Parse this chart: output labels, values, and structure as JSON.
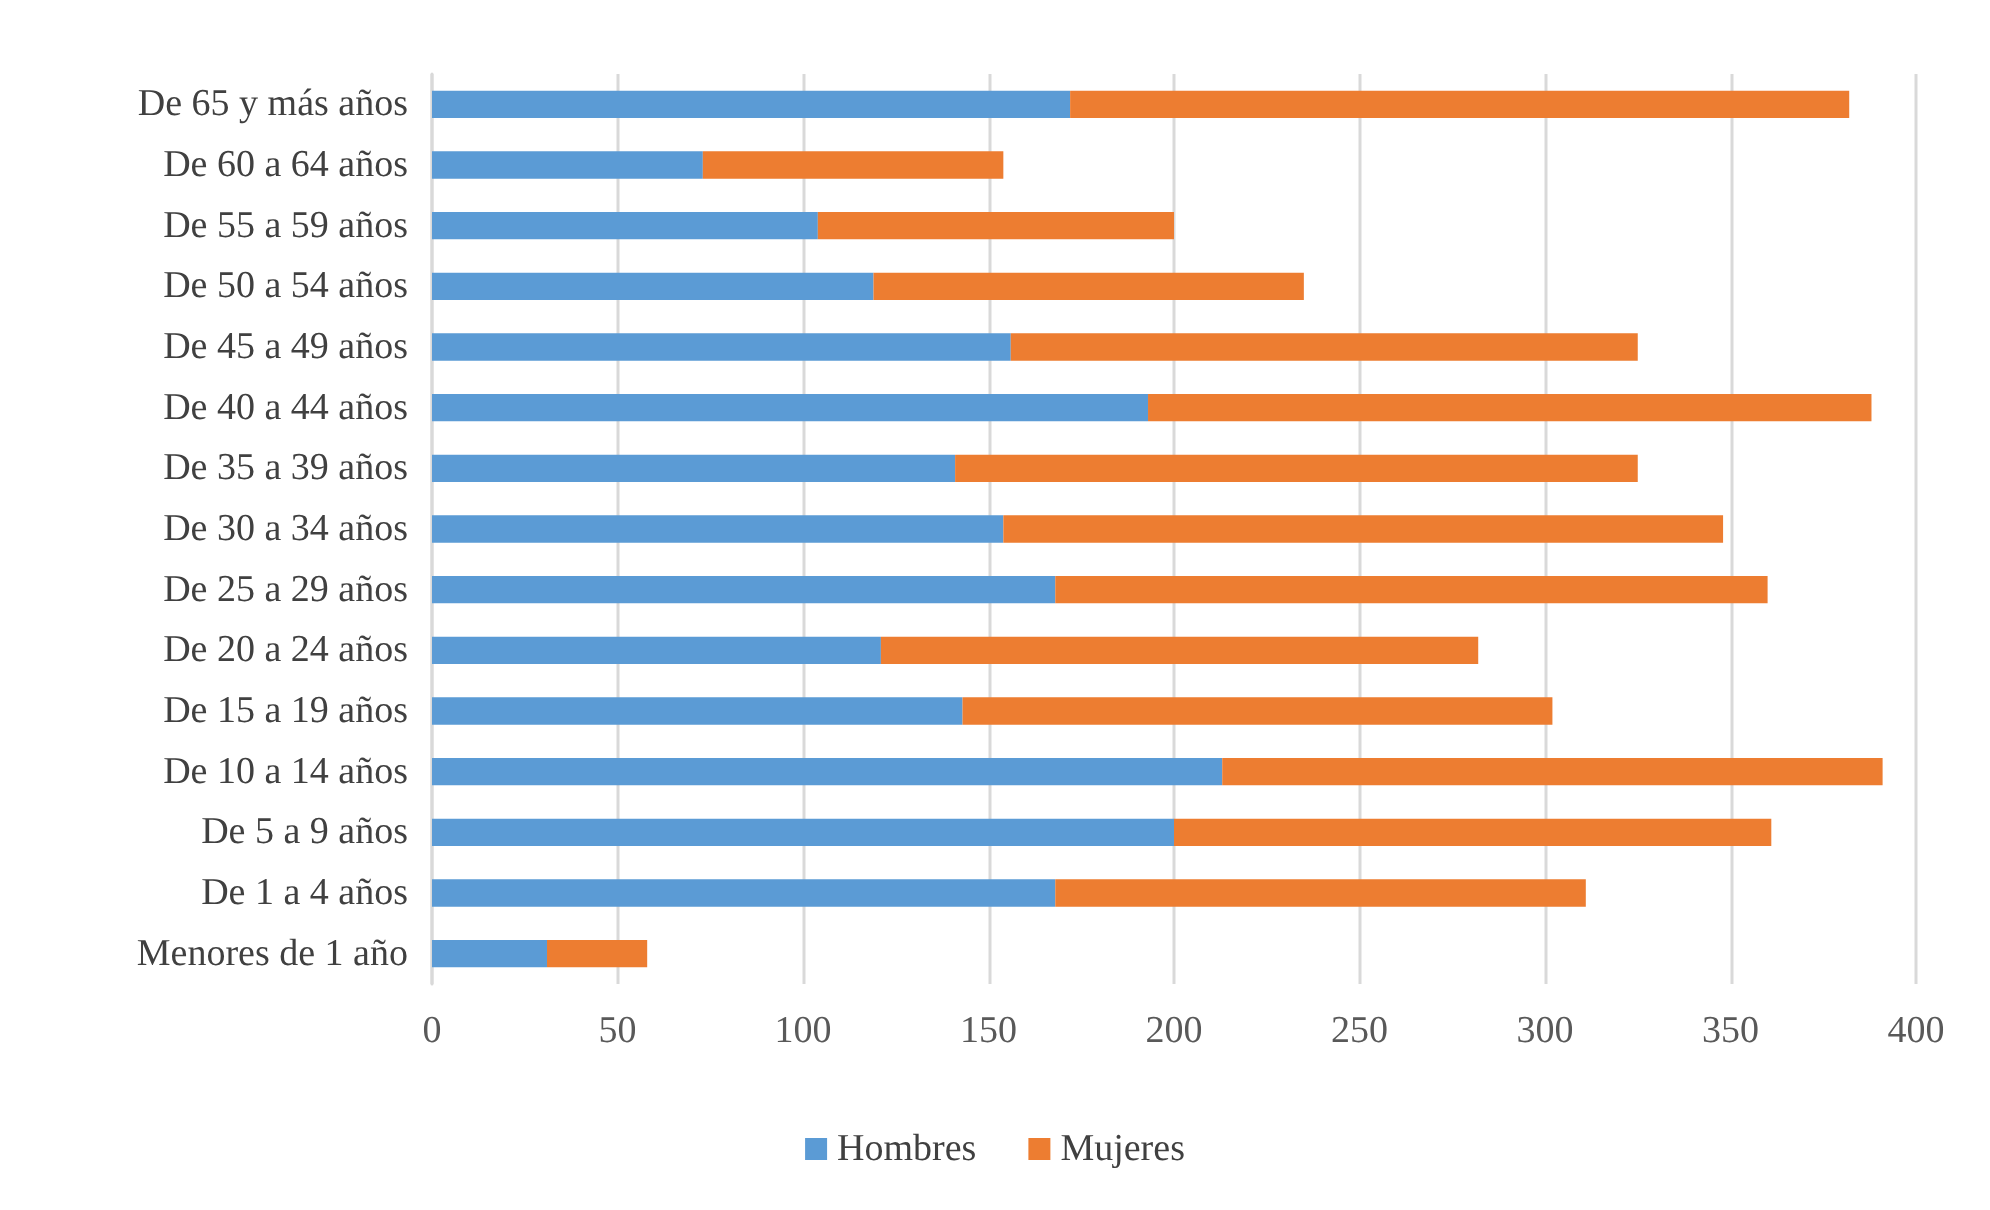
{
  "chart_data": {
    "type": "bar",
    "orientation": "horizontal",
    "stacked": true,
    "categories": [
      "De 65 y más años",
      "De 60 a 64 años",
      "De 55 a 59 años",
      "De 50 a 54 años",
      "De 45 a 49 años",
      "De 40 a 44 años",
      "De 35 a 39 años",
      "De 30 a 34 años",
      "De 25 a 29 años",
      "De 20 a 24 años",
      "De 15 a 19 años",
      "De 10 a 14 años",
      "De 5 a 9 años",
      "De 1 a 4 años",
      "Menores de 1 año"
    ],
    "series": [
      {
        "name": "Hombres",
        "color": "#5b9bd5",
        "values": [
          172,
          73,
          104,
          119,
          156,
          193,
          141,
          154,
          168,
          121,
          143,
          213,
          200,
          168,
          31
        ]
      },
      {
        "name": "Mujeres",
        "color": "#ed7d31",
        "values": [
          210,
          81,
          96,
          116,
          169,
          195,
          184,
          194,
          192,
          161,
          159,
          178,
          161,
          143,
          27
        ]
      }
    ],
    "xlim": [
      0,
      400
    ],
    "xticks": [
      0,
      50,
      100,
      150,
      200,
      250,
      300,
      350,
      400
    ],
    "grid": "x",
    "legend": "bottom"
  }
}
